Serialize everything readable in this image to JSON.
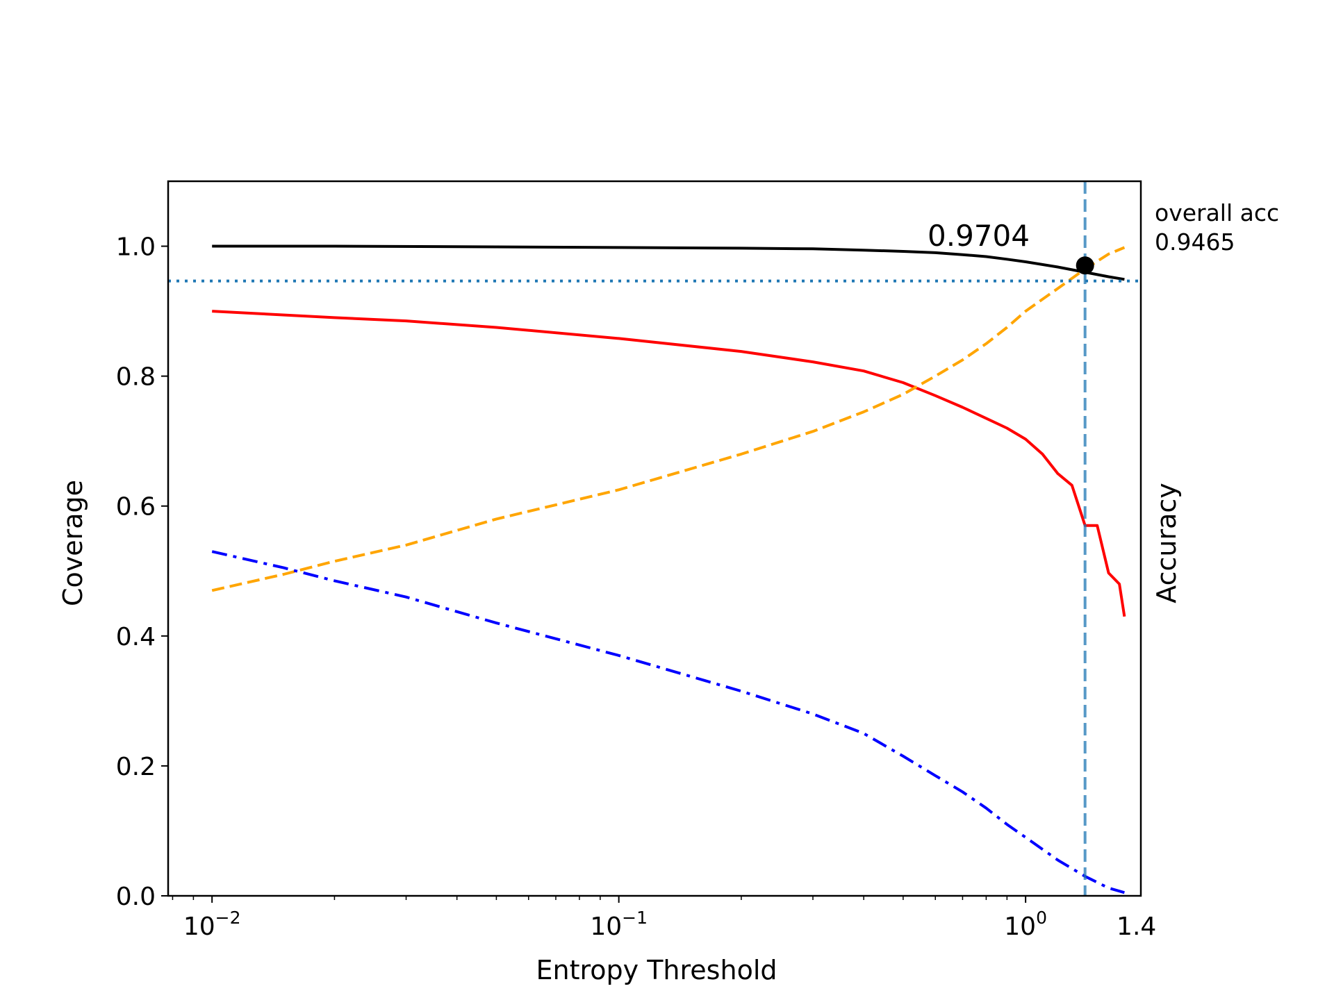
{
  "chart_data": {
    "type": "line",
    "xscale": "log",
    "xlabel": "Entropy Threshold",
    "ylabel": "Coverage",
    "ylabel_right": "Accuracy",
    "xlim": [
      0.0078,
      1.92
    ],
    "ylim": [
      0,
      1.1
    ],
    "yticks": [
      {
        "value": 0.0,
        "label": "0.0"
      },
      {
        "value": 0.2,
        "label": "0.2"
      },
      {
        "value": 0.4,
        "label": "0.4"
      },
      {
        "value": 0.6,
        "label": "0.6"
      },
      {
        "value": 0.8,
        "label": "0.8"
      },
      {
        "value": 1.0,
        "label": "1.0"
      }
    ],
    "xticks": [
      {
        "value": 0.01,
        "base": "10",
        "exp": "−2"
      },
      {
        "value": 0.1,
        "base": "10",
        "exp": "−1"
      },
      {
        "value": 1.0,
        "base": "10",
        "exp": "0"
      }
    ],
    "xtick_extra": {
      "value": 1.4,
      "label": "1.4"
    },
    "reference_lines": {
      "horizontal_overall_acc": 0.9465,
      "vertical_threshold": 1.4,
      "color": "#1f77b4"
    },
    "marker": {
      "x": 1.4,
      "y": 0.9704,
      "label": "0.9704"
    },
    "side_note": {
      "line1": "overall acc",
      "line2": "0.9465"
    },
    "series": [
      {
        "name": "accuracy_black",
        "color": "#000000",
        "style": "solid",
        "x": [
          0.01,
          0.02,
          0.05,
          0.1,
          0.2,
          0.3,
          0.4,
          0.5,
          0.6,
          0.7,
          0.8,
          0.9,
          1.0,
          1.2,
          1.4,
          1.6,
          1.75
        ],
        "y": [
          1.0,
          1.0,
          0.999,
          0.998,
          0.997,
          0.996,
          0.994,
          0.992,
          0.99,
          0.987,
          0.984,
          0.98,
          0.976,
          0.968,
          0.96,
          0.953,
          0.949
        ]
      },
      {
        "name": "series_red",
        "color": "#ff0000",
        "style": "solid",
        "x": [
          0.01,
          0.02,
          0.03,
          0.05,
          0.1,
          0.2,
          0.3,
          0.4,
          0.5,
          0.6,
          0.7,
          0.8,
          0.9,
          1.0,
          1.1,
          1.2,
          1.3,
          1.4,
          1.5,
          1.6,
          1.7,
          1.75
        ],
        "y": [
          0.9,
          0.89,
          0.885,
          0.875,
          0.858,
          0.838,
          0.822,
          0.808,
          0.79,
          0.77,
          0.752,
          0.735,
          0.72,
          0.703,
          0.68,
          0.65,
          0.632,
          0.57,
          0.57,
          0.497,
          0.48,
          0.43
        ]
      },
      {
        "name": "series_orange",
        "color": "#ffa500",
        "style": "dashed",
        "x": [
          0.01,
          0.015,
          0.02,
          0.03,
          0.05,
          0.1,
          0.2,
          0.3,
          0.4,
          0.5,
          0.6,
          0.7,
          0.8,
          0.9,
          1.0,
          1.2,
          1.4,
          1.6,
          1.75
        ],
        "y": [
          0.47,
          0.495,
          0.515,
          0.54,
          0.58,
          0.625,
          0.68,
          0.715,
          0.745,
          0.772,
          0.8,
          0.825,
          0.85,
          0.875,
          0.9,
          0.935,
          0.965,
          0.988,
          0.998
        ]
      },
      {
        "name": "series_blue",
        "color": "#0000ff",
        "style": "dashdot",
        "x": [
          0.01,
          0.015,
          0.02,
          0.03,
          0.05,
          0.1,
          0.2,
          0.3,
          0.4,
          0.5,
          0.6,
          0.7,
          0.8,
          0.9,
          1.0,
          1.2,
          1.4,
          1.6,
          1.75
        ],
        "y": [
          0.53,
          0.505,
          0.485,
          0.46,
          0.42,
          0.37,
          0.315,
          0.28,
          0.25,
          0.215,
          0.185,
          0.16,
          0.135,
          0.11,
          0.09,
          0.055,
          0.03,
          0.012,
          0.005
        ]
      }
    ]
  }
}
